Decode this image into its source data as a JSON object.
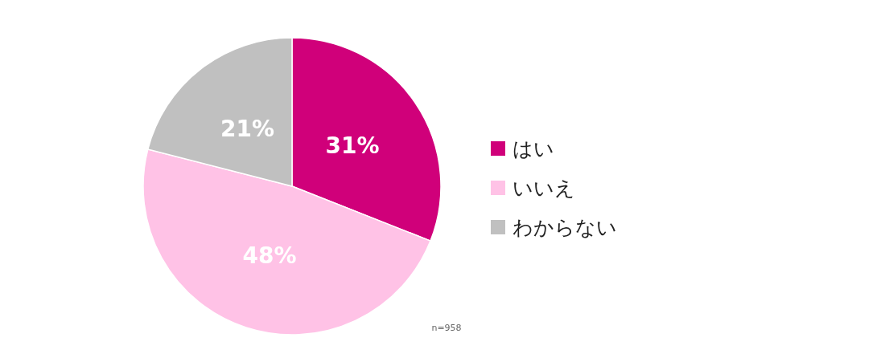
{
  "chart_data": {
    "type": "pie",
    "categories": [
      "はい",
      "いいえ",
      "わからない"
    ],
    "values": [
      31,
      48,
      21
    ],
    "colors": [
      "#d0007a",
      "#ffc2e6",
      "#c0c0c0"
    ],
    "value_labels": [
      "31%",
      "48%",
      "21%"
    ],
    "legend": "right",
    "annotations": [
      "n=958"
    ]
  }
}
